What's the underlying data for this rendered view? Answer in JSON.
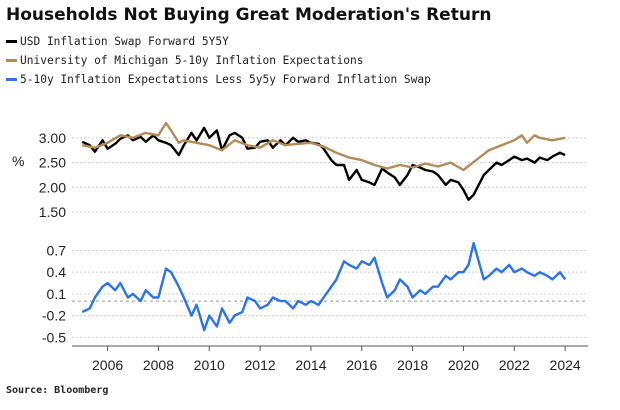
{
  "title": "Households Not Buying Great Moderation's Return",
  "source": "Source: Bloomberg",
  "colors": {
    "swap": "#000000",
    "michigan": "#b38b56",
    "spread": "#2a73e8",
    "grid": "#cfcfcf",
    "zero_line": "#9a9a9a"
  },
  "chart_data": [
    {
      "type": "line",
      "ylabel": "%",
      "ylim": [
        1.3,
        3.4
      ],
      "yticks": [
        1.5,
        2.0,
        2.5,
        3.0
      ],
      "ytick_labels": [
        "1.50",
        "2.00",
        "2.50",
        "3.00"
      ],
      "grid": true,
      "legend_position": "top-left",
      "series": [
        {
          "name": "USD Inflation Swap Forward 5Y5Y",
          "color": "#000000",
          "x": [
            2005.0,
            2005.3,
            2005.5,
            2005.8,
            2006.0,
            2006.3,
            2006.5,
            2006.8,
            2007.0,
            2007.3,
            2007.5,
            2007.8,
            2008.0,
            2008.3,
            2008.5,
            2008.8,
            2009.0,
            2009.3,
            2009.5,
            2009.8,
            2010.0,
            2010.3,
            2010.5,
            2010.8,
            2011.0,
            2011.3,
            2011.5,
            2011.8,
            2012.0,
            2012.3,
            2012.5,
            2012.8,
            2013.0,
            2013.3,
            2013.5,
            2013.8,
            2014.0,
            2014.3,
            2014.5,
            2014.8,
            2015.0,
            2015.3,
            2015.5,
            2015.8,
            2016.0,
            2016.3,
            2016.5,
            2016.8,
            2017.0,
            2017.3,
            2017.5,
            2017.8,
            2018.0,
            2018.3,
            2018.5,
            2018.8,
            2019.0,
            2019.3,
            2019.5,
            2019.8,
            2020.0,
            2020.2,
            2020.4,
            2020.6,
            2020.8,
            2021.0,
            2021.3,
            2021.5,
            2021.8,
            2022.0,
            2022.3,
            2022.5,
            2022.8,
            2023.0,
            2023.3,
            2023.5,
            2023.8,
            2024.0
          ],
          "values": [
            2.92,
            2.85,
            2.72,
            2.95,
            2.78,
            2.88,
            2.98,
            3.05,
            2.95,
            3.02,
            2.92,
            3.05,
            2.95,
            2.9,
            2.85,
            2.65,
            2.85,
            3.1,
            2.95,
            3.2,
            3.0,
            3.15,
            2.75,
            3.05,
            3.1,
            3.0,
            2.78,
            2.8,
            2.92,
            2.95,
            2.8,
            2.95,
            2.85,
            3.0,
            2.92,
            2.95,
            2.9,
            2.88,
            2.78,
            2.55,
            2.45,
            2.45,
            2.15,
            2.35,
            2.15,
            2.1,
            2.05,
            2.38,
            2.3,
            2.2,
            2.05,
            2.25,
            2.45,
            2.4,
            2.35,
            2.32,
            2.25,
            2.05,
            2.15,
            2.1,
            1.95,
            1.75,
            1.85,
            2.05,
            2.25,
            2.35,
            2.5,
            2.45,
            2.55,
            2.62,
            2.55,
            2.58,
            2.5,
            2.6,
            2.55,
            2.62,
            2.7,
            2.65
          ]
        },
        {
          "name": "University of Michigan 5-10y Inflation Expectations",
          "color": "#b38b56",
          "x": [
            2005.0,
            2005.5,
            2006.0,
            2006.5,
            2007.0,
            2007.5,
            2008.0,
            2008.3,
            2008.5,
            2008.8,
            2009.0,
            2009.5,
            2010.0,
            2010.5,
            2011.0,
            2011.5,
            2012.0,
            2012.5,
            2013.0,
            2013.5,
            2014.0,
            2014.5,
            2015.0,
            2015.5,
            2016.0,
            2016.5,
            2017.0,
            2017.5,
            2018.0,
            2018.5,
            2019.0,
            2019.5,
            2020.0,
            2020.5,
            2021.0,
            2021.5,
            2022.0,
            2022.3,
            2022.5,
            2022.8,
            2023.0,
            2023.5,
            2024.0
          ],
          "values": [
            2.85,
            2.8,
            2.9,
            3.05,
            3.0,
            3.1,
            3.05,
            3.3,
            3.15,
            2.9,
            2.95,
            2.9,
            2.85,
            2.75,
            2.95,
            2.85,
            2.8,
            2.95,
            2.85,
            2.88,
            2.9,
            2.82,
            2.7,
            2.6,
            2.55,
            2.45,
            2.38,
            2.45,
            2.4,
            2.48,
            2.42,
            2.5,
            2.35,
            2.55,
            2.75,
            2.85,
            2.95,
            3.05,
            2.9,
            3.05,
            3.0,
            2.95,
            3.0
          ]
        }
      ]
    },
    {
      "type": "line",
      "ylim": [
        -0.62,
        0.9
      ],
      "yticks": [
        -0.5,
        -0.2,
        0.1,
        0.4,
        0.7
      ],
      "ytick_labels": [
        "-0.5",
        "-0.2",
        "0.1",
        "0.4",
        "0.7"
      ],
      "zero_line": 0.0,
      "grid": true,
      "x_tick_labels": [
        "2006",
        "2008",
        "2010",
        "2012",
        "2014",
        "2016",
        "2018",
        "2020",
        "2022",
        "2024"
      ],
      "xlim": [
        2004.6,
        2024.9
      ],
      "series": [
        {
          "name": "5-10y Inflation Expectations Less 5y5y Forward Inflation Swap",
          "color": "#2a73e8",
          "x": [
            2005.0,
            2005.3,
            2005.5,
            2005.8,
            2006.0,
            2006.3,
            2006.5,
            2006.8,
            2007.0,
            2007.3,
            2007.5,
            2007.8,
            2008.0,
            2008.3,
            2008.5,
            2008.8,
            2009.0,
            2009.3,
            2009.5,
            2009.8,
            2010.0,
            2010.3,
            2010.5,
            2010.8,
            2011.0,
            2011.3,
            2011.5,
            2011.8,
            2012.0,
            2012.3,
            2012.5,
            2012.8,
            2013.0,
            2013.3,
            2013.5,
            2013.8,
            2014.0,
            2014.3,
            2014.5,
            2014.8,
            2015.0,
            2015.3,
            2015.5,
            2015.8,
            2016.0,
            2016.3,
            2016.5,
            2016.8,
            2017.0,
            2017.3,
            2017.5,
            2017.8,
            2018.0,
            2018.3,
            2018.5,
            2018.8,
            2019.0,
            2019.3,
            2019.5,
            2019.8,
            2020.0,
            2020.2,
            2020.4,
            2020.6,
            2020.8,
            2021.0,
            2021.3,
            2021.5,
            2021.8,
            2022.0,
            2022.3,
            2022.5,
            2022.8,
            2023.0,
            2023.3,
            2023.5,
            2023.8,
            2024.0
          ],
          "values": [
            -0.15,
            -0.1,
            0.05,
            0.2,
            0.25,
            0.15,
            0.25,
            0.05,
            0.1,
            0.0,
            0.15,
            0.05,
            0.05,
            0.45,
            0.4,
            0.2,
            0.05,
            -0.2,
            -0.05,
            -0.4,
            -0.2,
            -0.35,
            -0.1,
            -0.3,
            -0.2,
            -0.15,
            0.05,
            0.0,
            -0.1,
            -0.05,
            0.05,
            0.0,
            0.0,
            -0.1,
            0.0,
            -0.05,
            0.0,
            -0.05,
            0.05,
            0.2,
            0.3,
            0.55,
            0.5,
            0.45,
            0.55,
            0.5,
            0.6,
            0.25,
            0.05,
            0.15,
            0.3,
            0.2,
            0.05,
            0.15,
            0.1,
            0.2,
            0.2,
            0.35,
            0.3,
            0.4,
            0.4,
            0.5,
            0.8,
            0.55,
            0.3,
            0.35,
            0.45,
            0.4,
            0.5,
            0.4,
            0.45,
            0.4,
            0.35,
            0.4,
            0.35,
            0.3,
            0.4,
            0.3
          ]
        }
      ]
    }
  ]
}
